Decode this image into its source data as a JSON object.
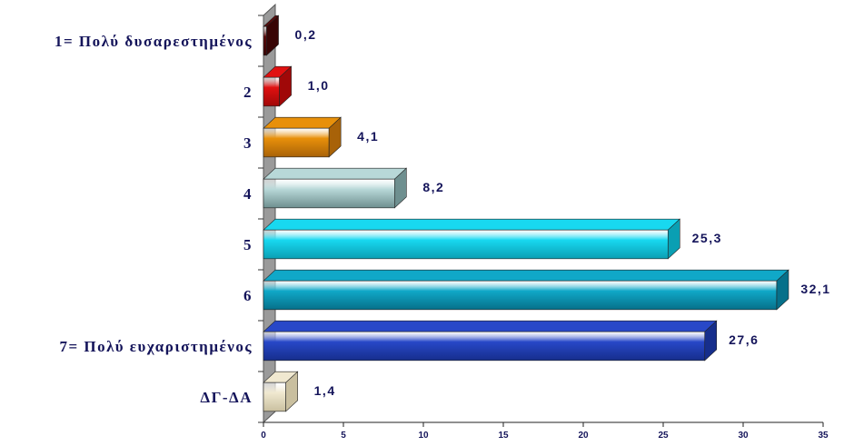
{
  "chart_data": {
    "type": "bar",
    "orientation": "horizontal",
    "categories": [
      "1= Πολύ δυσαρεστημένος",
      "2",
      "3",
      "4",
      "5",
      "6",
      "7= Πολύ ευχαριστημένος",
      "ΔΓ-ΔΑ"
    ],
    "values": [
      0.2,
      1.0,
      4.1,
      8.2,
      25.3,
      32.1,
      27.6,
      1.4
    ],
    "value_labels": [
      "0,2",
      "1,0",
      "4,1",
      "8,2",
      "25,3",
      "32,1",
      "27,6",
      "1,4"
    ],
    "bar_colors": [
      "#5a0a0a",
      "#e01010",
      "#e8900a",
      "#b8d8d8",
      "#18d8f0",
      "#10a8c8",
      "#2848c8",
      "#f0e8d0"
    ],
    "bar_dark_colors": [
      "#380505",
      "#a00808",
      "#a86208",
      "#6e8f8f",
      "#0a9fb3",
      "#06708a",
      "#162e8c",
      "#c9bf9f"
    ],
    "x_ticks": [
      0,
      5,
      10,
      15,
      20,
      25,
      30,
      35
    ],
    "xlim": [
      0,
      35
    ],
    "title": "",
    "xlabel": "",
    "ylabel": "",
    "grid": false,
    "style": "3d"
  }
}
